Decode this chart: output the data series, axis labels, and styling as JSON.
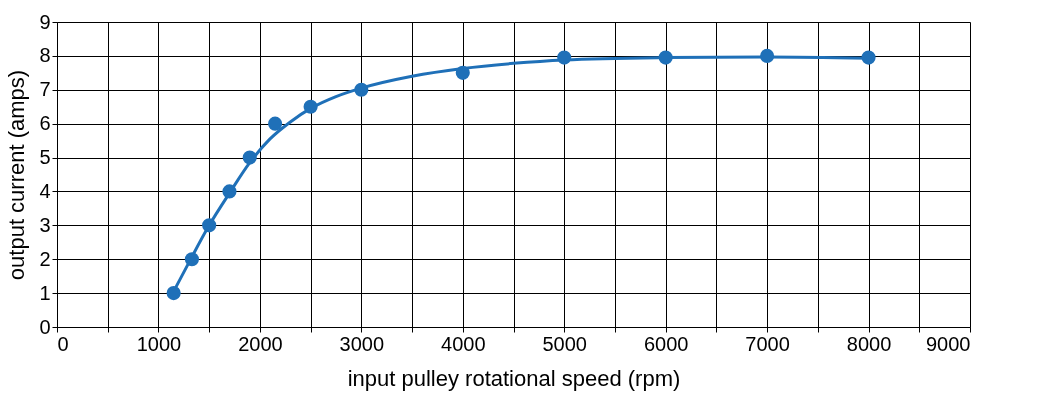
{
  "chart_data": {
    "type": "scatter",
    "xlabel": "input pulley rotational speed (rpm)",
    "ylabel": "output current (amps)",
    "xlim": [
      0,
      9000
    ],
    "ylim": [
      0,
      9
    ],
    "xticks": [
      0,
      {
        "value": 500,
        "label": null
      },
      1000,
      {
        "value": 1500,
        "label": null
      },
      2000,
      {
        "value": 2500,
        "label": null
      },
      3000,
      {
        "value": 3500,
        "label": null
      },
      4000,
      {
        "value": 4500,
        "label": null
      },
      5000,
      {
        "value": 5500,
        "label": null
      },
      6000,
      {
        "value": 6500,
        "label": null
      },
      7000,
      {
        "value": 7500,
        "label": null
      },
      8000,
      {
        "value": 8500,
        "label": null
      },
      9000
    ],
    "yticks": [
      0,
      1,
      2,
      3,
      4,
      5,
      6,
      7,
      8,
      9
    ],
    "grid": true,
    "marker": "circle",
    "line_style": "solid",
    "series": [
      {
        "type": "line",
        "marker": "none",
        "color": "#1f70b8",
        "x": [
          1150,
          1300,
          1500,
          1700,
          1900,
          2100,
          2300,
          2500,
          2750,
          3000,
          3500,
          4000,
          4500,
          5000,
          6000,
          7000,
          8000
        ],
        "values": [
          1.05,
          1.9,
          3.0,
          3.95,
          4.85,
          5.55,
          6.05,
          6.45,
          6.8,
          7.05,
          7.4,
          7.63,
          7.78,
          7.88,
          7.95,
          7.97,
          7.93
        ]
      },
      {
        "color": "#1f70b8",
        "x": [
          1150,
          1330,
          1500,
          1700,
          1900,
          2150,
          2500,
          3000,
          4000,
          5000,
          6000,
          7000,
          8000
        ],
        "values": [
          1,
          2,
          3,
          4,
          5,
          6,
          6.5,
          7,
          7.5,
          7.95,
          7.95,
          8,
          7.95
        ]
      }
    ]
  }
}
